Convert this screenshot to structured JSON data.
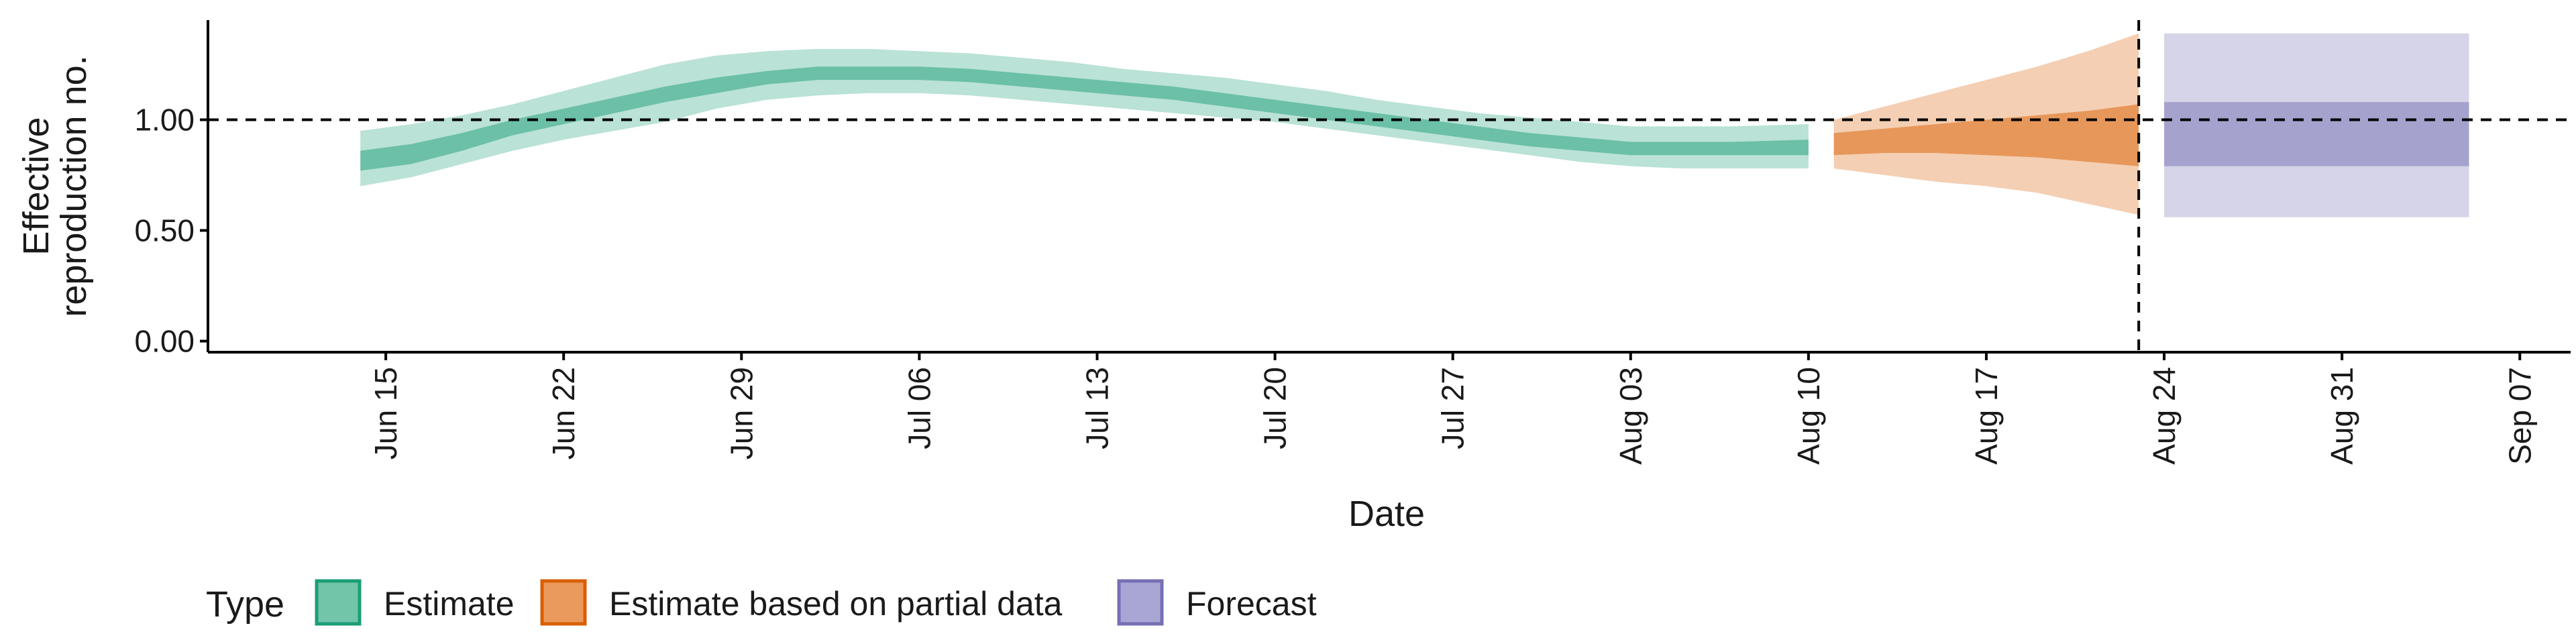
{
  "chart_data": {
    "type": "area",
    "title": "",
    "xlabel": "Date",
    "ylabel_lines": [
      "Effective",
      "reproduction no."
    ],
    "x_ticks": [
      "2020-06-15",
      "2020-06-22",
      "2020-06-29",
      "2020-07-06",
      "2020-07-13",
      "2020-07-20",
      "2020-07-27",
      "2020-08-03",
      "2020-08-10",
      "2020-08-17",
      "2020-08-24",
      "2020-08-31",
      "2020-09-07"
    ],
    "x_tick_labels": [
      "Jun 15",
      "Jun 22",
      "Jun 29",
      "Jul 06",
      "Jul 13",
      "Jul 20",
      "Jul 27",
      "Aug 03",
      "Aug 10",
      "Aug 17",
      "Aug 24",
      "Aug 31",
      "Sep 07"
    ],
    "y_ticks": [
      0,
      0.5,
      1.0
    ],
    "y_tick_labels": [
      "0.00",
      "0.50",
      "1.00"
    ],
    "xlim": [
      "2020-06-08",
      "2020-09-09"
    ],
    "ylim": [
      -0.05,
      1.45
    ],
    "reference_line_y": 1.0,
    "vertical_line_x": "2020-08-23",
    "grid": false,
    "legend": {
      "title": "Type",
      "position": "bottom",
      "items": [
        {
          "label": "Estimate",
          "fill": "#72C5A8",
          "stroke": "#1B9E77"
        },
        {
          "label": "Estimate based on partial data",
          "fill": "#EA9A5C",
          "stroke": "#D95F02"
        },
        {
          "label": "Forecast",
          "fill": "#A9A6D6",
          "stroke": "#7570B3"
        }
      ]
    },
    "series": [
      {
        "name": "Estimate",
        "color": "#1B9E77",
        "x": [
          "2020-06-14",
          "2020-06-16",
          "2020-06-18",
          "2020-06-20",
          "2020-06-22",
          "2020-06-24",
          "2020-06-26",
          "2020-06-28",
          "2020-06-30",
          "2020-07-02",
          "2020-07-04",
          "2020-07-06",
          "2020-07-08",
          "2020-07-10",
          "2020-07-12",
          "2020-07-14",
          "2020-07-16",
          "2020-07-18",
          "2020-07-20",
          "2020-07-22",
          "2020-07-24",
          "2020-07-26",
          "2020-07-28",
          "2020-07-30",
          "2020-08-01",
          "2020-08-03",
          "2020-08-05",
          "2020-08-07",
          "2020-08-10"
        ],
        "outer_lower": [
          0.7,
          0.74,
          0.8,
          0.86,
          0.91,
          0.95,
          0.99,
          1.05,
          1.09,
          1.11,
          1.12,
          1.12,
          1.11,
          1.09,
          1.07,
          1.05,
          1.03,
          1.01,
          0.99,
          0.96,
          0.93,
          0.9,
          0.87,
          0.84,
          0.81,
          0.79,
          0.78,
          0.78,
          0.78
        ],
        "inner_lower": [
          0.77,
          0.8,
          0.86,
          0.93,
          0.98,
          1.03,
          1.08,
          1.12,
          1.16,
          1.18,
          1.18,
          1.18,
          1.17,
          1.15,
          1.13,
          1.11,
          1.09,
          1.06,
          1.03,
          1.0,
          0.97,
          0.94,
          0.91,
          0.88,
          0.86,
          0.84,
          0.84,
          0.84,
          0.84
        ],
        "inner_upper": [
          0.86,
          0.89,
          0.94,
          1.0,
          1.05,
          1.1,
          1.15,
          1.19,
          1.22,
          1.24,
          1.24,
          1.24,
          1.23,
          1.21,
          1.19,
          1.17,
          1.15,
          1.12,
          1.09,
          1.06,
          1.03,
          1.0,
          0.97,
          0.94,
          0.92,
          0.9,
          0.9,
          0.9,
          0.91
        ],
        "outer_upper": [
          0.95,
          0.98,
          1.02,
          1.07,
          1.13,
          1.19,
          1.25,
          1.29,
          1.31,
          1.32,
          1.32,
          1.31,
          1.3,
          1.28,
          1.26,
          1.23,
          1.21,
          1.19,
          1.16,
          1.13,
          1.09,
          1.06,
          1.03,
          1.01,
          0.99,
          0.97,
          0.97,
          0.97,
          0.98
        ]
      },
      {
        "name": "Estimate based on partial data",
        "color": "#D95F02",
        "x": [
          "2020-08-11",
          "2020-08-13",
          "2020-08-15",
          "2020-08-17",
          "2020-08-19",
          "2020-08-21",
          "2020-08-23"
        ],
        "outer_lower": [
          0.78,
          0.75,
          0.72,
          0.7,
          0.67,
          0.62,
          0.57
        ],
        "inner_lower": [
          0.84,
          0.85,
          0.85,
          0.84,
          0.83,
          0.81,
          0.79
        ],
        "inner_upper": [
          0.94,
          0.96,
          0.98,
          1.0,
          1.02,
          1.04,
          1.07
        ],
        "outer_upper": [
          1.0,
          1.06,
          1.12,
          1.18,
          1.24,
          1.31,
          1.39
        ]
      },
      {
        "name": "Forecast",
        "color": "#7570B3",
        "x": [
          "2020-08-24",
          "2020-09-05"
        ],
        "outer_lower": [
          0.56,
          0.56
        ],
        "inner_lower": [
          0.79,
          0.79
        ],
        "inner_upper": [
          1.08,
          1.08
        ],
        "outer_upper": [
          1.39,
          1.39
        ]
      }
    ]
  }
}
